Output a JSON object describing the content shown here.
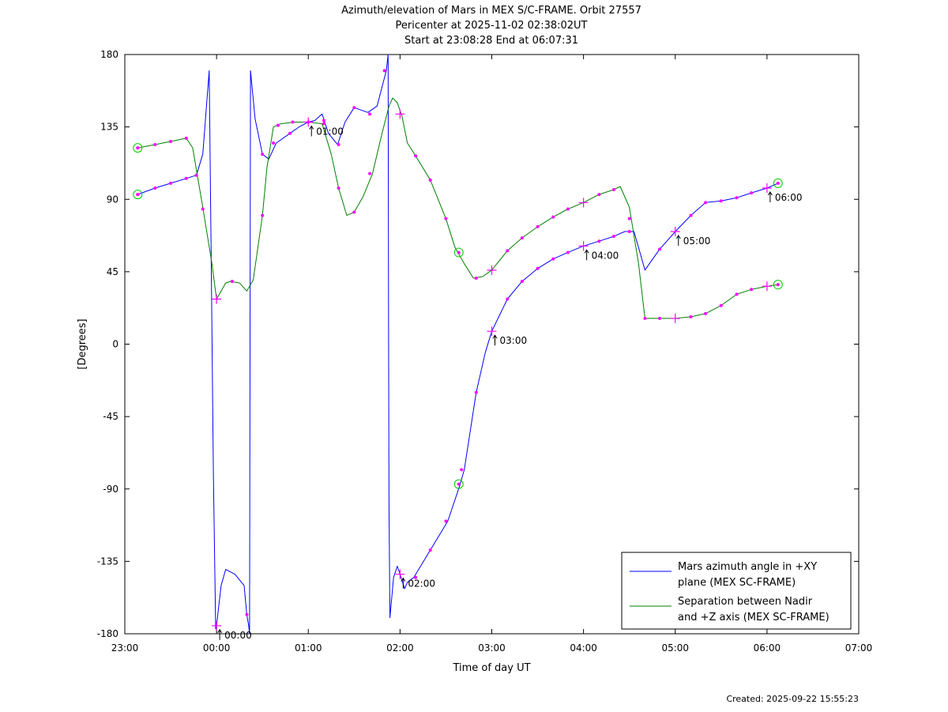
{
  "chart_data": {
    "type": "line",
    "title_lines": [
      "Azimuth/elevation of Mars in MEX S/C-FRAME.  Orbit 27557",
      "Pericenter at 2025-11-02 02:38:02UT",
      "Start at 23:08:28 End at 06:07:31"
    ],
    "xlabel": "Time of day UT",
    "ylabel": "[Degrees]",
    "xlim": [
      -1,
      7
    ],
    "ylim": [
      -180,
      180
    ],
    "x_ticks": [
      -1,
      0,
      1,
      2,
      3,
      4,
      5,
      6,
      7
    ],
    "x_tick_labels": [
      "23:00",
      "00:00",
      "01:00",
      "02:00",
      "03:00",
      "04:00",
      "05:00",
      "06:00",
      "07:00"
    ],
    "y_ticks": [
      180,
      135,
      90,
      45,
      0,
      -45,
      -90,
      -135,
      -180
    ],
    "y_tick_labels": [
      "180",
      "135",
      "90",
      "45",
      "0",
      "-45",
      "-90",
      "-135",
      "-180"
    ],
    "grid": false,
    "legend_position": "bottom-right",
    "series": [
      {
        "name": "Mars azimuth angle in +XY plane (MEX SC-FRAME)",
        "legend_lines": [
          "Mars azimuth angle in +XY",
          "plane (MEX SC-FRAME)"
        ],
        "color": "#0000ff",
        "points": [
          [
            -0.86,
            93
          ],
          [
            -0.67,
            97
          ],
          [
            -0.5,
            100
          ],
          [
            -0.33,
            103
          ],
          [
            -0.22,
            105
          ],
          [
            -0.15,
            118
          ],
          [
            -0.08,
            170
          ],
          [
            -0.06,
            60
          ],
          [
            -0.035,
            -80
          ],
          [
            -0.01,
            -177
          ],
          [
            0.0,
            -175
          ],
          [
            0.05,
            -150
          ],
          [
            0.1,
            -140
          ],
          [
            0.2,
            -143
          ],
          [
            0.3,
            -150
          ],
          [
            0.33,
            -168
          ],
          [
            0.35,
            -175
          ],
          [
            0.36,
            -180
          ],
          [
            0.365,
            0
          ],
          [
            0.37,
            170
          ],
          [
            0.42,
            140
          ],
          [
            0.5,
            118
          ],
          [
            0.57,
            115
          ],
          [
            0.65,
            125
          ],
          [
            0.8,
            131
          ],
          [
            0.9,
            135
          ],
          [
            1.0,
            138
          ],
          [
            1.07,
            139
          ],
          [
            1.15,
            143
          ],
          [
            1.22,
            131
          ],
          [
            1.32,
            124
          ],
          [
            1.4,
            138
          ],
          [
            1.5,
            147
          ],
          [
            1.65,
            144
          ],
          [
            1.75,
            148
          ],
          [
            1.85,
            170
          ],
          [
            1.87,
            180
          ],
          [
            1.875,
            0
          ],
          [
            1.88,
            -100
          ],
          [
            1.89,
            -170
          ],
          [
            1.93,
            -145
          ],
          [
            1.97,
            -138
          ],
          [
            2.0,
            -143
          ],
          [
            2.05,
            -152
          ],
          [
            2.08,
            -148
          ],
          [
            2.15,
            -145
          ],
          [
            2.33,
            -128
          ],
          [
            2.52,
            -110
          ],
          [
            2.65,
            -88
          ],
          [
            2.7,
            -78
          ],
          [
            2.83,
            -30
          ],
          [
            2.93,
            -5
          ],
          [
            3.0,
            8
          ],
          [
            3.17,
            28
          ],
          [
            3.33,
            39
          ],
          [
            3.5,
            47
          ],
          [
            3.67,
            53
          ],
          [
            3.83,
            57
          ],
          [
            4.0,
            61
          ],
          [
            4.17,
            64
          ],
          [
            4.33,
            67
          ],
          [
            4.45,
            70
          ],
          [
            4.55,
            70
          ],
          [
            4.6,
            60
          ],
          [
            4.67,
            46
          ],
          [
            4.73,
            51
          ],
          [
            4.83,
            59
          ],
          [
            5.0,
            70
          ],
          [
            5.17,
            80
          ],
          [
            5.33,
            88
          ],
          [
            5.5,
            89
          ],
          [
            5.67,
            91
          ],
          [
            5.83,
            94
          ],
          [
            6.0,
            97
          ],
          [
            6.12,
            100
          ]
        ]
      },
      {
        "name": "Separation between Nadir and +Z axis (MEX SC-FRAME)",
        "legend_lines": [
          "Separation between Nadir",
          "and +Z axis (MEX SC-FRAME)"
        ],
        "color": "#008000",
        "points": [
          [
            -0.86,
            122
          ],
          [
            -0.67,
            124
          ],
          [
            -0.5,
            126
          ],
          [
            -0.33,
            128
          ],
          [
            -0.26,
            122
          ],
          [
            -0.15,
            85
          ],
          [
            -0.05,
            50
          ],
          [
            0.0,
            28
          ],
          [
            0.1,
            38
          ],
          [
            0.15,
            39
          ],
          [
            0.25,
            38
          ],
          [
            0.33,
            33
          ],
          [
            0.4,
            40
          ],
          [
            0.5,
            80
          ],
          [
            0.55,
            110
          ],
          [
            0.62,
            135
          ],
          [
            0.7,
            137
          ],
          [
            0.85,
            138
          ],
          [
            1.0,
            138
          ],
          [
            1.15,
            137
          ],
          [
            1.25,
            118
          ],
          [
            1.33,
            97
          ],
          [
            1.42,
            80
          ],
          [
            1.5,
            82
          ],
          [
            1.6,
            92
          ],
          [
            1.7,
            106
          ],
          [
            1.8,
            130
          ],
          [
            1.88,
            148
          ],
          [
            1.92,
            153
          ],
          [
            1.97,
            150
          ],
          [
            2.02,
            142
          ],
          [
            2.08,
            125
          ],
          [
            2.17,
            117
          ],
          [
            2.33,
            102
          ],
          [
            2.5,
            78
          ],
          [
            2.6,
            60
          ],
          [
            2.7,
            50
          ],
          [
            2.8,
            41
          ],
          [
            2.9,
            42
          ],
          [
            3.0,
            46
          ],
          [
            3.17,
            58
          ],
          [
            3.33,
            66
          ],
          [
            3.5,
            73
          ],
          [
            3.67,
            79
          ],
          [
            3.83,
            84
          ],
          [
            4.0,
            88
          ],
          [
            4.17,
            93
          ],
          [
            4.33,
            96
          ],
          [
            4.4,
            98
          ],
          [
            4.5,
            85
          ],
          [
            4.6,
            50
          ],
          [
            4.67,
            16
          ],
          [
            4.83,
            16
          ],
          [
            5.0,
            16
          ],
          [
            5.17,
            17
          ],
          [
            5.33,
            19
          ],
          [
            5.5,
            24
          ],
          [
            5.67,
            31
          ],
          [
            5.83,
            34
          ],
          [
            6.0,
            36
          ],
          [
            6.12,
            37
          ]
        ]
      }
    ],
    "point_markers": [
      [
        -0.86,
        93
      ],
      [
        -0.67,
        97
      ],
      [
        -0.5,
        100
      ],
      [
        -0.33,
        103
      ],
      [
        -0.22,
        105
      ],
      [
        -0.15,
        84
      ],
      [
        0.33,
        -168
      ],
      [
        0.5,
        118
      ],
      [
        0.62,
        125
      ],
      [
        0.8,
        131
      ],
      [
        1.0,
        138
      ],
      [
        1.17,
        139
      ],
      [
        1.33,
        124
      ],
      [
        1.5,
        147
      ],
      [
        1.67,
        143
      ],
      [
        1.83,
        170
      ],
      [
        2.17,
        -145
      ],
      [
        2.33,
        -128
      ],
      [
        2.5,
        -110
      ],
      [
        2.67,
        -78
      ],
      [
        2.83,
        -30
      ],
      [
        3.17,
        28
      ],
      [
        3.33,
        39
      ],
      [
        3.5,
        47
      ],
      [
        3.67,
        53
      ],
      [
        3.83,
        57
      ],
      [
        4.17,
        64
      ],
      [
        4.33,
        67
      ],
      [
        4.5,
        70
      ],
      [
        4.83,
        59
      ],
      [
        5.17,
        80
      ],
      [
        5.33,
        88
      ],
      [
        5.5,
        89
      ],
      [
        5.67,
        91
      ],
      [
        5.83,
        94
      ],
      [
        -0.67,
        124
      ],
      [
        -0.5,
        126
      ],
      [
        -0.33,
        128
      ],
      [
        0.17,
        39
      ],
      [
        0.5,
        80
      ],
      [
        0.67,
        136
      ],
      [
        0.83,
        138
      ],
      [
        1.17,
        137
      ],
      [
        1.33,
        97
      ],
      [
        1.5,
        82
      ],
      [
        1.67,
        106
      ],
      [
        2.17,
        117
      ],
      [
        2.33,
        102
      ],
      [
        2.5,
        78
      ],
      [
        2.83,
        41
      ],
      [
        3.17,
        58
      ],
      [
        3.33,
        66
      ],
      [
        3.5,
        73
      ],
      [
        3.67,
        79
      ],
      [
        3.83,
        84
      ],
      [
        4.17,
        93
      ],
      [
        4.33,
        96
      ],
      [
        4.5,
        78
      ],
      [
        4.67,
        16
      ],
      [
        4.83,
        16
      ],
      [
        5.17,
        17
      ],
      [
        5.33,
        19
      ],
      [
        5.5,
        24
      ],
      [
        5.67,
        31
      ],
      [
        5.83,
        34
      ]
    ],
    "hour_markers": [
      [
        0.0,
        -175
      ],
      [
        0.0,
        28
      ],
      [
        1.0,
        138
      ],
      [
        2.0,
        143
      ],
      [
        2.0,
        -143
      ],
      [
        3.0,
        46
      ],
      [
        3.0,
        8
      ],
      [
        4.0,
        88
      ],
      [
        4.0,
        61
      ],
      [
        5.0,
        70
      ],
      [
        5.0,
        16
      ],
      [
        6.0,
        97
      ],
      [
        6.0,
        36
      ]
    ],
    "circle_markers": [
      [
        -0.86,
        93
      ],
      [
        -0.86,
        122
      ],
      [
        2.64,
        57
      ],
      [
        2.64,
        -87
      ],
      [
        6.12,
        100
      ],
      [
        6.12,
        37
      ]
    ],
    "annotations": [
      {
        "label": "00:00",
        "x": 0.0,
        "y": -175
      },
      {
        "label": "01:00",
        "x": 1.0,
        "y": 138
      },
      {
        "label": "02:00",
        "x": 2.0,
        "y": -143
      },
      {
        "label": "03:00",
        "x": 3.0,
        "y": 8
      },
      {
        "label": "04:00",
        "x": 4.0,
        "y": 61
      },
      {
        "label": "05:00",
        "x": 5.0,
        "y": 70
      },
      {
        "label": "06:00",
        "x": 6.0,
        "y": 97
      }
    ],
    "marker_color": "#ff00ff",
    "circle_color": "#00cc00"
  },
  "footer": {
    "created": "Created: 2025-09-22 15:55:23"
  }
}
